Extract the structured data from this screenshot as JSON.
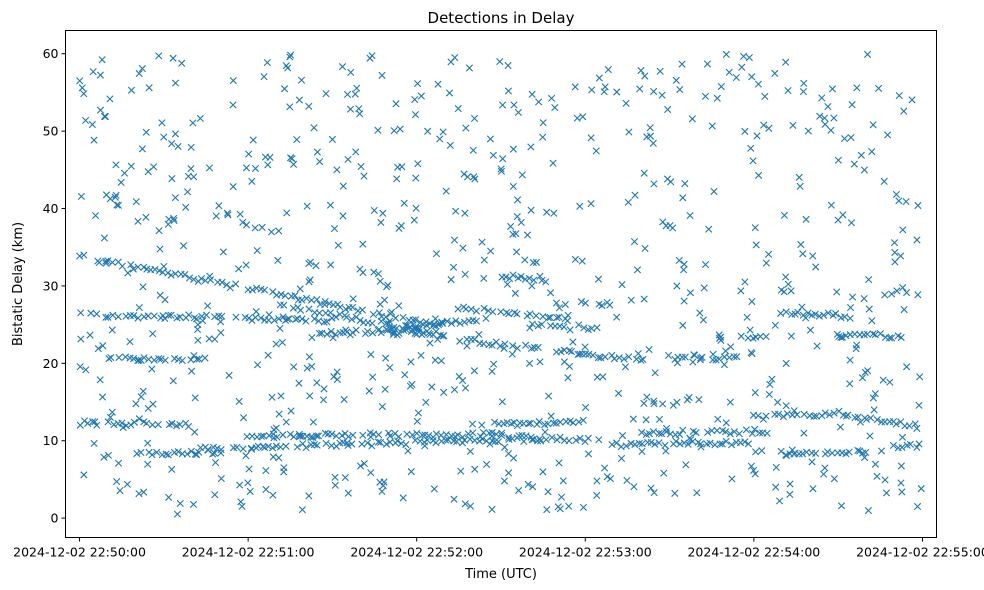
{
  "chart_data": {
    "type": "scatter",
    "title": "Detections in Delay",
    "xlabel": "Time (UTC)",
    "ylabel": "Bistatic Delay (km)",
    "marker": "x",
    "color": "#1f77b4",
    "grid": false,
    "xlim": [
      "2024-12-02 22:49:55",
      "2024-12-02 22:55:05"
    ],
    "ylim": [
      -2.5,
      63
    ],
    "x_ticks": [
      "2024-12-02 22:50:00",
      "2024-12-02 22:51:00",
      "2024-12-02 22:52:00",
      "2024-12-02 22:53:00",
      "2024-12-02 22:54:00",
      "2024-12-02 22:55:00"
    ],
    "y_ticks": [
      0,
      10,
      20,
      30,
      40,
      50,
      60
    ],
    "time_range": [
      "2024-12-02 22:50:00",
      "2024-12-02 22:55:00"
    ],
    "tracks": [
      {
        "start": "22:50:00",
        "end": "22:52:10",
        "delay_start": 33.8,
        "delay_end": 24.8
      },
      {
        "start": "22:50:00",
        "end": "22:51:30",
        "delay_start": 26.3,
        "delay_end": 25.6
      },
      {
        "start": "22:51:10",
        "end": "22:52:10",
        "delay_start": 27.5,
        "delay_end": 23.8
      },
      {
        "start": "22:51:25",
        "end": "22:52:05",
        "delay_start": 24.0,
        "delay_end": 24.2
      },
      {
        "start": "22:51:50",
        "end": "22:52:25",
        "delay_start": 24.5,
        "delay_end": 25.8
      },
      {
        "start": "22:52:00",
        "end": "22:53:20",
        "delay_start": 23.7,
        "delay_end": 20.4
      },
      {
        "start": "22:52:15",
        "end": "22:52:55",
        "delay_start": 27.2,
        "delay_end": 25.7
      },
      {
        "start": "22:52:30",
        "end": "22:52:45",
        "delay_start": 31.2,
        "delay_end": 31.0
      },
      {
        "start": "22:52:40",
        "end": "22:53:05",
        "delay_start": 24.8,
        "delay_end": 24.4
      },
      {
        "start": "22:53:00",
        "end": "22:53:10",
        "delay_start": 27.8,
        "delay_end": 27.5
      },
      {
        "start": "22:53:30",
        "end": "22:53:55",
        "delay_start": 20.8,
        "delay_end": 20.7
      },
      {
        "start": "22:53:55",
        "end": "22:54:05",
        "delay_start": 23.5,
        "delay_end": 23.5
      },
      {
        "start": "22:54:10",
        "end": "22:54:35",
        "delay_start": 26.5,
        "delay_end": 26.1
      },
      {
        "start": "22:54:30",
        "end": "22:54:55",
        "delay_start": 23.6,
        "delay_end": 23.5
      },
      {
        "start": "22:50:00",
        "end": "22:50:40",
        "delay_start": 12.3,
        "delay_end": 12.1
      },
      {
        "start": "22:50:10",
        "end": "22:50:45",
        "delay_start": 20.6,
        "delay_end": 20.4
      },
      {
        "start": "22:50:20",
        "end": "22:50:50",
        "delay_start": 8.2,
        "delay_end": 8.6
      },
      {
        "start": "22:50:40",
        "end": "22:52:45",
        "delay_start": 9.0,
        "delay_end": 10.2
      },
      {
        "start": "22:51:00",
        "end": "22:52:30",
        "delay_start": 10.6,
        "delay_end": 10.8
      },
      {
        "start": "22:52:20",
        "end": "22:53:00",
        "delay_start": 12.1,
        "delay_end": 12.4
      },
      {
        "start": "22:52:30",
        "end": "22:53:05",
        "delay_start": 10.6,
        "delay_end": 10.0
      },
      {
        "start": "22:53:10",
        "end": "22:54:00",
        "delay_start": 9.5,
        "delay_end": 9.8
      },
      {
        "start": "22:53:20",
        "end": "22:54:05",
        "delay_start": 11.0,
        "delay_end": 11.2
      },
      {
        "start": "22:54:00",
        "end": "22:54:35",
        "delay_start": 13.0,
        "delay_end": 13.6
      },
      {
        "start": "22:54:30",
        "end": "22:55:00",
        "delay_start": 13.3,
        "delay_end": 11.8
      },
      {
        "start": "22:54:10",
        "end": "22:54:40",
        "delay_start": 8.4,
        "delay_end": 8.6
      },
      {
        "start": "22:54:50",
        "end": "22:55:00",
        "delay_start": 9.3,
        "delay_end": 9.3
      }
    ],
    "clutter": {
      "count": 780,
      "delay_range": [
        0.5,
        60
      ],
      "seed": 7
    }
  }
}
